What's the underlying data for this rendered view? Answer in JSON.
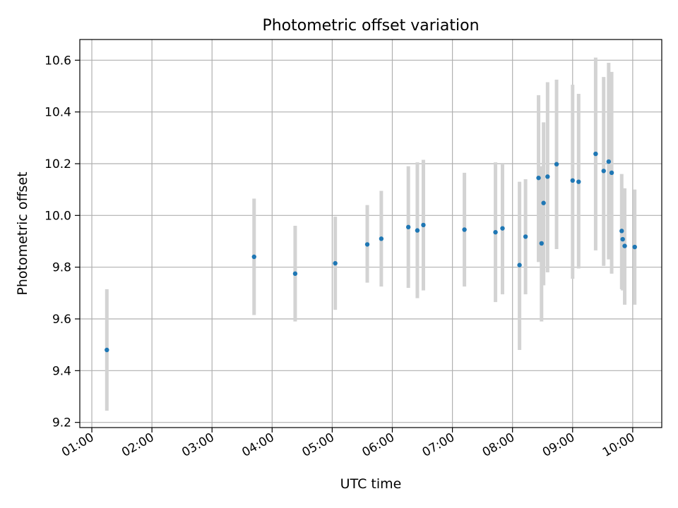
{
  "chart_data": {
    "type": "scatter",
    "title": "Photometric offset variation",
    "xlabel": "UTC time",
    "ylabel": "Photometric offset",
    "x_tick_labels": [
      "01:00",
      "02:00",
      "03:00",
      "04:00",
      "05:00",
      "06:00",
      "07:00",
      "08:00",
      "09:00",
      "10:00"
    ],
    "y_tick_labels": [
      "9.2",
      "9.4",
      "9.6",
      "9.8",
      "10.0",
      "10.2",
      "10.4",
      "10.6"
    ],
    "xlim": [
      "00:48",
      "10:29"
    ],
    "ylim": [
      9.18,
      10.68
    ],
    "grid": true,
    "marker_color": "#1f77b4",
    "errorbar_color": "#d3d3d3",
    "points": [
      {
        "t": "01:15",
        "y": 9.48,
        "lo": 9.245,
        "hi": 9.715
      },
      {
        "t": "03:42",
        "y": 9.84,
        "lo": 9.615,
        "hi": 10.065
      },
      {
        "t": "04:23",
        "y": 9.775,
        "lo": 9.59,
        "hi": 9.96
      },
      {
        "t": "05:03",
        "y": 9.815,
        "lo": 9.635,
        "hi": 9.995
      },
      {
        "t": "05:35",
        "y": 9.888,
        "lo": 9.74,
        "hi": 10.04
      },
      {
        "t": "05:49",
        "y": 9.91,
        "lo": 9.725,
        "hi": 10.095
      },
      {
        "t": "06:16",
        "y": 9.955,
        "lo": 9.72,
        "hi": 10.19
      },
      {
        "t": "06:25",
        "y": 9.942,
        "lo": 9.68,
        "hi": 10.205
      },
      {
        "t": "06:31",
        "y": 9.963,
        "lo": 9.71,
        "hi": 10.215
      },
      {
        "t": "07:12",
        "y": 9.945,
        "lo": 9.725,
        "hi": 10.165
      },
      {
        "t": "07:43",
        "y": 9.935,
        "lo": 9.665,
        "hi": 10.205
      },
      {
        "t": "07:50",
        "y": 9.95,
        "lo": 9.695,
        "hi": 10.2
      },
      {
        "t": "08:07",
        "y": 9.808,
        "lo": 9.48,
        "hi": 10.13
      },
      {
        "t": "08:13",
        "y": 9.918,
        "lo": 9.695,
        "hi": 10.14
      },
      {
        "t": "08:26",
        "y": 10.145,
        "lo": 9.82,
        "hi": 10.465
      },
      {
        "t": "08:29",
        "y": 9.892,
        "lo": 9.59,
        "hi": 10.19
      },
      {
        "t": "08:31",
        "y": 10.048,
        "lo": 9.73,
        "hi": 10.36
      },
      {
        "t": "08:35",
        "y": 10.15,
        "lo": 9.78,
        "hi": 10.515
      },
      {
        "t": "08:44",
        "y": 10.198,
        "lo": 9.87,
        "hi": 10.525
      },
      {
        "t": "09:00",
        "y": 10.135,
        "lo": 9.755,
        "hi": 10.505
      },
      {
        "t": "09:06",
        "y": 10.13,
        "lo": 9.795,
        "hi": 10.47
      },
      {
        "t": "09:23",
        "y": 10.238,
        "lo": 9.865,
        "hi": 10.61
      },
      {
        "t": "09:31",
        "y": 10.172,
        "lo": 9.805,
        "hi": 10.535
      },
      {
        "t": "09:36",
        "y": 10.208,
        "lo": 9.83,
        "hi": 10.59
      },
      {
        "t": "09:39",
        "y": 10.165,
        "lo": 9.775,
        "hi": 10.555
      },
      {
        "t": "09:49",
        "y": 9.94,
        "lo": 9.715,
        "hi": 10.16
      },
      {
        "t": "09:50",
        "y": 9.908,
        "lo": 9.71,
        "hi": 10.105
      },
      {
        "t": "09:52",
        "y": 9.882,
        "lo": 9.655,
        "hi": 10.105
      },
      {
        "t": "10:02",
        "y": 9.878,
        "lo": 9.655,
        "hi": 10.1
      }
    ]
  }
}
